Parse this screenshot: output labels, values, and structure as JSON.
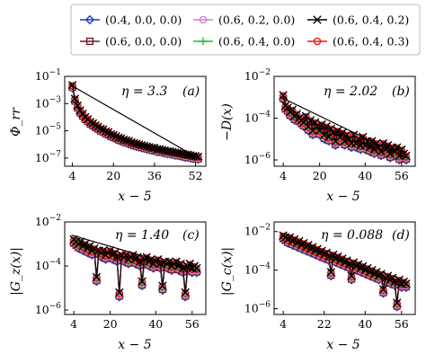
{
  "legend": [
    {
      "label": "(0.4, 0.0, 0.0)",
      "color": "#1f3fbf",
      "marker": "diamond"
    },
    {
      "label": "(0.6, 0.2, 0.0)",
      "color": "#d27ad6",
      "marker": "circle"
    },
    {
      "label": "(0.6, 0.4, 0.2)",
      "color": "#000000",
      "marker": "x"
    },
    {
      "label": "(0.6, 0.0, 0.0)",
      "color": "#6b1f2a",
      "marker": "square"
    },
    {
      "label": "(0.6, 0.4, 0.0)",
      "color": "#22bb33",
      "marker": "plus"
    },
    {
      "label": "(0.6, 0.4, 0.3)",
      "color": "#e41a1c",
      "marker": "circle"
    }
  ],
  "chart_data": [
    {
      "type": "scatter",
      "panel": "(a)",
      "annotation": "η = 3.3",
      "ylabel": "Φ_rr",
      "xlabel": "x − 5",
      "xticks": [
        4,
        20,
        36,
        52
      ],
      "yticks": [
        "10^-1",
        "10^-3",
        "10^-5",
        "10^-7"
      ],
      "xlim": [
        1,
        56
      ],
      "ylog": [
        -7.6,
        -1
      ],
      "series_note": "y values as log10",
      "x": [
        4,
        5,
        6,
        7,
        8,
        9,
        10,
        11,
        12,
        13,
        14,
        15,
        16,
        17,
        18,
        19,
        20,
        21,
        22,
        23,
        24,
        25,
        26,
        27,
        28,
        29,
        30,
        31,
        32,
        33,
        34,
        35,
        36,
        37,
        38,
        39,
        40,
        41,
        42,
        43,
        44,
        45,
        46,
        47,
        48,
        49,
        50,
        51,
        52,
        53
      ],
      "series_y": [
        -1.75,
        -2.75,
        -3.25,
        -3.6,
        -3.85,
        -4.1,
        -4.25,
        -4.45,
        -4.55,
        -4.7,
        -4.8,
        -4.95,
        -5.0,
        -5.15,
        -5.2,
        -5.35,
        -5.4,
        -5.5,
        -5.6,
        -5.65,
        -5.75,
        -5.8,
        -5.85,
        -5.95,
        -6.0,
        -6.05,
        -6.1,
        -6.15,
        -6.2,
        -6.25,
        -6.3,
        -6.35,
        -6.35,
        -6.45,
        -6.45,
        -6.5,
        -6.55,
        -6.6,
        -6.6,
        -6.65,
        -6.7,
        -6.72,
        -6.75,
        -6.8,
        -6.85,
        -6.85,
        -6.9,
        -6.95,
        -6.95,
        -7.0
      ],
      "fit": {
        "x": [
          3,
          53
        ],
        "y": [
          -1.6,
          -7.0
        ]
      }
    },
    {
      "type": "scatter",
      "panel": "(b)",
      "annotation": "η = 2.02",
      "ylabel": "−D(x)",
      "xlabel": "x − 5",
      "xticks": [
        4,
        20,
        40,
        56
      ],
      "yticks": [
        "10^-2",
        "10^-4",
        "10^-6"
      ],
      "xlim": [
        0,
        62
      ],
      "ylog": [
        -6.3,
        -2
      ],
      "x": [
        4,
        5,
        6,
        7,
        8,
        9,
        10,
        11,
        12,
        13,
        14,
        15,
        16,
        17,
        18,
        19,
        20,
        21,
        22,
        23,
        24,
        25,
        26,
        27,
        28,
        29,
        30,
        31,
        32,
        33,
        34,
        35,
        36,
        37,
        38,
        39,
        40,
        41,
        42,
        43,
        44,
        45,
        46,
        47,
        48,
        49,
        50,
        51,
        52,
        53,
        54,
        55,
        56,
        57,
        58
      ],
      "series_y": [
        -3.0,
        -3.5,
        -3.6,
        -3.8,
        -3.7,
        -4.0,
        -3.9,
        -4.1,
        -4.2,
        -4.3,
        -4.0,
        -4.5,
        -4.2,
        -4.7,
        -4.3,
        -4.5,
        -4.7,
        -4.4,
        -4.9,
        -4.5,
        -5.0,
        -4.6,
        -4.8,
        -5.2,
        -4.7,
        -5.0,
        -4.8,
        -5.2,
        -4.9,
        -5.1,
        -5.3,
        -4.9,
        -5.3,
        -5.1,
        -5.4,
        -5.0,
        -5.4,
        -5.2,
        -5.5,
        -5.2,
        -5.6,
        -5.3,
        -5.5,
        -5.7,
        -5.3,
        -5.6,
        -5.4,
        -5.8,
        -5.5,
        -5.7,
        -5.5,
        -5.9,
        -5.6,
        -5.8,
        -5.9
      ],
      "fit": {
        "x": [
          3,
          58
        ],
        "y": [
          -3.0,
          -5.9
        ]
      }
    },
    {
      "type": "scatter",
      "panel": "(c)",
      "annotation": "η = 1.40",
      "ylabel": "|G_z(x)|",
      "xlabel": "x − 5",
      "xticks": [
        4,
        20,
        40,
        56
      ],
      "yticks": [
        "10^-2",
        "10^-4",
        "10^-6"
      ],
      "xlim": [
        0,
        62
      ],
      "ylog": [
        -6.2,
        -2
      ],
      "x": [
        4,
        5,
        6,
        7,
        8,
        9,
        10,
        11,
        12,
        13,
        14,
        15,
        16,
        17,
        18,
        19,
        20,
        21,
        22,
        23,
        24,
        25,
        26,
        27,
        28,
        29,
        30,
        31,
        32,
        33,
        34,
        35,
        36,
        37,
        38,
        39,
        40,
        41,
        42,
        43,
        44,
        45,
        46,
        47,
        48,
        49,
        50,
        51,
        52,
        53,
        54,
        55,
        56,
        57,
        58
      ],
      "series_y": [
        -2.9,
        -3.0,
        -3.1,
        -3.0,
        -3.2,
        -3.1,
        -3.3,
        -3.2,
        -3.4,
        -3.3,
        -4.6,
        -3.4,
        -3.5,
        -3.4,
        -3.6,
        -3.5,
        -3.4,
        -3.6,
        -3.5,
        -3.7,
        -5.3,
        -3.6,
        -3.7,
        -3.6,
        -3.8,
        -3.7,
        -3.6,
        -3.8,
        -3.7,
        -3.9,
        -4.8,
        -3.8,
        -3.7,
        -3.9,
        -3.8,
        -4.0,
        -3.9,
        -3.8,
        -4.0,
        -5.0,
        -3.9,
        -4.0,
        -3.9,
        -4.1,
        -4.0,
        -3.9,
        -4.1,
        -4.0,
        -4.2,
        -5.3,
        -4.1,
        -4.0,
        -4.2,
        -4.1,
        -4.2
      ],
      "fit": {
        "x": [
          3,
          58
        ],
        "y": [
          -2.6,
          -4.25
        ]
      }
    },
    {
      "type": "scatter",
      "panel": "(d)",
      "annotation": "η = 0.088",
      "ylabel": "|G_c(x)|",
      "xlabel": "x − 5",
      "xticks": [
        4,
        22,
        40,
        56
      ],
      "yticks": [
        "10^-2",
        "10^-4",
        "10^-6"
      ],
      "xlim": [
        0,
        62
      ],
      "ylog": [
        -6.3,
        -1.5
      ],
      "x": [
        4,
        5,
        6,
        7,
        8,
        9,
        10,
        11,
        12,
        13,
        14,
        15,
        16,
        17,
        18,
        19,
        20,
        21,
        22,
        23,
        24,
        25,
        26,
        27,
        28,
        29,
        30,
        31,
        32,
        33,
        34,
        35,
        36,
        37,
        38,
        39,
        40,
        41,
        42,
        43,
        44,
        45,
        46,
        47,
        48,
        49,
        50,
        51,
        52,
        53,
        54,
        55,
        56,
        57,
        58
      ],
      "series_y": [
        -2.3,
        -2.4,
        -2.5,
        -2.4,
        -2.6,
        -2.5,
        -2.7,
        -2.6,
        -2.8,
        -2.7,
        -2.9,
        -2.8,
        -3.0,
        -2.9,
        -3.1,
        -3.0,
        -3.2,
        -3.1,
        -3.3,
        -3.2,
        -3.4,
        -4.2,
        -3.3,
        -3.5,
        -3.4,
        -3.6,
        -3.5,
        -3.7,
        -3.6,
        -3.8,
        -4.4,
        -3.7,
        -3.9,
        -3.8,
        -4.0,
        -3.9,
        -4.1,
        -4.0,
        -4.2,
        -4.1,
        -4.3,
        -4.2,
        -4.4,
        -4.3,
        -5.1,
        -4.5,
        -4.4,
        -4.6,
        -4.5,
        -4.7,
        -5.8,
        -4.6,
        -4.8,
        -4.7,
        -4.8
      ],
      "fit": {
        "x": [
          3,
          58
        ],
        "y": [
          -2.2,
          -4.9
        ]
      }
    }
  ]
}
